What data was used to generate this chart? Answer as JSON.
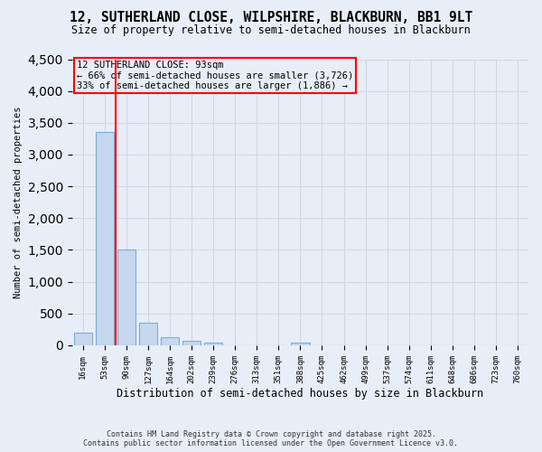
{
  "title_line1": "12, SUTHERLAND CLOSE, WILPSHIRE, BLACKBURN, BB1 9LT",
  "title_line2": "Size of property relative to semi-detached houses in Blackburn",
  "xlabel": "Distribution of semi-detached houses by size in Blackburn",
  "ylabel": "Number of semi-detached properties",
  "footer_line1": "Contains HM Land Registry data © Crown copyright and database right 2025.",
  "footer_line2": "Contains public sector information licensed under the Open Government Licence v3.0.",
  "bin_labels": [
    "16sqm",
    "53sqm",
    "90sqm",
    "127sqm",
    "164sqm",
    "202sqm",
    "239sqm",
    "276sqm",
    "313sqm",
    "351sqm",
    "388sqm",
    "425sqm",
    "462sqm",
    "499sqm",
    "537sqm",
    "574sqm",
    "611sqm",
    "648sqm",
    "686sqm",
    "723sqm",
    "760sqm"
  ],
  "bar_values": [
    195,
    3350,
    1500,
    360,
    125,
    75,
    38,
    5,
    2,
    2,
    38,
    2,
    0,
    0,
    0,
    0,
    0,
    0,
    0,
    0,
    0
  ],
  "bar_color": "#c5d8f0",
  "bar_edge_color": "#7badd4",
  "grid_color": "#d0d8e8",
  "background_color": "#e8eef8",
  "vline_color": "red",
  "vline_x": 1.5,
  "annotation_title": "12 SUTHERLAND CLOSE: 93sqm",
  "annotation_line2": "← 66% of semi-detached houses are smaller (3,726)",
  "annotation_line3": "33% of semi-detached houses are larger (1,886) →",
  "ylim_max": 4500,
  "ytick_step": 500
}
